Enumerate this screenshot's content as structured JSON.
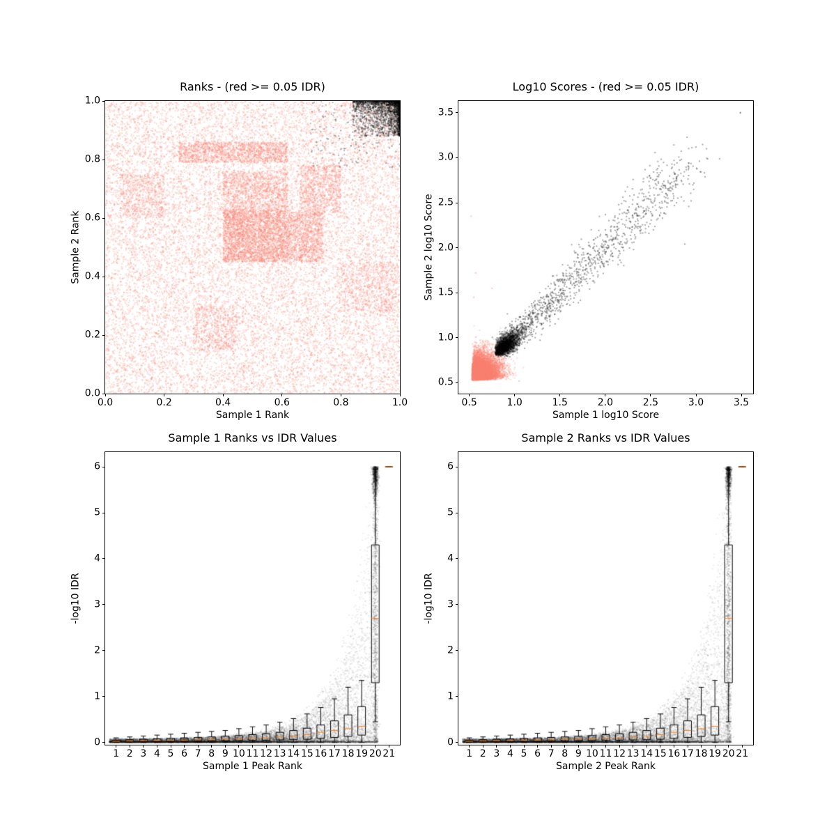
{
  "figure": {
    "background": "#ffffff",
    "text_color": "#000000",
    "reproducible_color": "#000000",
    "irreproducible_color": "#fa8072",
    "median_color": "#ff7f0e"
  },
  "chart_data": [
    {
      "type": "scatter",
      "title": "Ranks - (red >= 0.05 IDR)",
      "xlabel": "Sample 1 Rank",
      "ylabel": "Sample 2 Rank",
      "xlim": [
        0.0,
        1.0
      ],
      "ylim": [
        0.0,
        1.0
      ],
      "grid": false,
      "legend": "none",
      "xticks": {
        "values": [
          0.0,
          0.2,
          0.4,
          0.6,
          0.8,
          1.0
        ],
        "labels": [
          "0.0",
          "0.2",
          "0.4",
          "0.6",
          "0.8",
          "1.0"
        ]
      },
      "yticks": {
        "values": [
          0.0,
          0.2,
          0.4,
          0.6,
          0.8,
          1.0
        ],
        "labels": [
          "0.0",
          "0.2",
          "0.4",
          "0.6",
          "0.8",
          "1.0"
        ]
      },
      "series": [
        {
          "name": "irreproducible-peaks-idr>=0.05",
          "color": "#fa8072",
          "alpha": 0.3,
          "size": 2,
          "gen": "blocks",
          "blocks": [
            [
              0.0,
              1.0,
              0.0,
              1.0,
              15000
            ],
            [
              0.4,
              0.62,
              0.45,
              0.63,
              3200
            ],
            [
              0.62,
              0.74,
              0.45,
              0.62,
              1100
            ],
            [
              0.4,
              0.62,
              0.63,
              0.76,
              1100
            ],
            [
              0.25,
              0.62,
              0.79,
              0.86,
              1400
            ],
            [
              0.66,
              0.8,
              0.62,
              0.78,
              800
            ],
            [
              0.05,
              0.2,
              0.6,
              0.75,
              500
            ],
            [
              0.8,
              1.0,
              0.28,
              0.45,
              600
            ],
            [
              0.3,
              0.45,
              0.15,
              0.3,
              500
            ]
          ]
        },
        {
          "name": "reproducible-peaks-idr<0.05",
          "color": "#000000",
          "alpha": 0.3,
          "size": 2,
          "gen": "corner",
          "n": 2600,
          "cx": 1.0,
          "cy": 1.0,
          "dx": 0.16,
          "dy": 0.12,
          "pow": 2.6
        }
      ]
    },
    {
      "type": "scatter",
      "title": "Log10 Scores - (red >= 0.05 IDR)",
      "xlabel": "Sample 1 log10 Score",
      "ylabel": "Sample 2 log10 Score",
      "xlim": [
        0.38,
        3.63
      ],
      "ylim": [
        0.38,
        3.63
      ],
      "grid": false,
      "legend": "none",
      "xticks": {
        "values": [
          0.5,
          1.0,
          1.5,
          2.0,
          2.5,
          3.0,
          3.5
        ],
        "labels": [
          "0.5",
          "1.0",
          "1.5",
          "2.0",
          "2.5",
          "3.0",
          "3.5"
        ]
      },
      "yticks": {
        "values": [
          0.5,
          1.0,
          1.5,
          2.0,
          2.5,
          3.0,
          3.5
        ],
        "labels": [
          "0.5",
          "1.0",
          "1.5",
          "2.0",
          "2.5",
          "3.0",
          "3.5"
        ]
      },
      "series": [
        {
          "name": "irreproducible-low-scores",
          "color": "#fa8072",
          "alpha": 0.3,
          "size": 2,
          "gen": "blob",
          "n": 21000,
          "cx": 0.53,
          "cy": 0.53,
          "corr": 0.15,
          "sigmas": [
            [
              0.085,
              0.7
            ],
            [
              0.16,
              0.3
            ]
          ]
        },
        {
          "name": "reproducible-cluster",
          "color": "#000000",
          "alpha": 0.3,
          "size": 2,
          "gen": "blob",
          "n": 2300,
          "cx": 0.78,
          "cy": 0.8,
          "corr": 0.55,
          "sigmas": [
            [
              0.14,
              1.0
            ]
          ]
        },
        {
          "name": "reproducible-diagonal-band",
          "color": "#000000",
          "alpha": 0.35,
          "size": 2,
          "gen": "band",
          "n": 1400,
          "v0": 0.9,
          "v1": 2.95,
          "pow": 1.7,
          "noise": 0.06
        },
        {
          "name": "black-outliers",
          "color": "#000000",
          "alpha": 0.55,
          "size": 2,
          "gen": "points",
          "points": [
            [
              3.49,
              3.5
            ],
            [
              2.92,
              2.94
            ],
            [
              2.66,
              2.69
            ],
            [
              2.45,
              2.38
            ],
            [
              2.3,
              2.36
            ]
          ]
        },
        {
          "name": "salmon-outliers",
          "color": "#fa8072",
          "alpha": 0.5,
          "size": 2,
          "gen": "points",
          "points": [
            [
              0.57,
              1.72
            ],
            [
              0.55,
              1.45
            ],
            [
              0.75,
              1.55
            ],
            [
              1.05,
              0.52
            ],
            [
              0.52,
              2.35
            ]
          ]
        }
      ]
    },
    {
      "type": "scatter+box",
      "title": "Sample 1 Ranks vs IDR Values",
      "xlabel": "Sample 1 Peak Rank",
      "ylabel": "-log10 IDR",
      "xlim": [
        0.2,
        21.8
      ],
      "ylim": [
        -0.05,
        6.32
      ],
      "grid": false,
      "legend": "none",
      "xticks": {
        "values": [
          1,
          2,
          3,
          4,
          5,
          6,
          7,
          8,
          9,
          10,
          11,
          12,
          13,
          14,
          15,
          16,
          17,
          18,
          19,
          20,
          21
        ],
        "labels": [
          "1",
          "2",
          "3",
          "4",
          "5",
          "6",
          "7",
          "8",
          "9",
          "10",
          "11",
          "12",
          "13",
          "14",
          "15",
          "16",
          "17",
          "18",
          "19",
          "20",
          "21"
        ]
      },
      "yticks": {
        "values": [
          0,
          1,
          2,
          3,
          4,
          5,
          6
        ],
        "labels": [
          "0",
          "1",
          "2",
          "3",
          "4",
          "5",
          "6"
        ]
      },
      "series": [
        {
          "name": "idr-vs-rank-cloud",
          "color": "#000000",
          "alpha": 0.08,
          "size": 2,
          "gen": "idr_cloud",
          "n": 15000,
          "x0": 0.5,
          "x1": 20.2,
          "env_base": 0.07,
          "env_ratio": 86,
          "env_pow": 2.5,
          "skew": 3.0
        },
        {
          "name": "top-rank-streak",
          "color": "#000000",
          "alpha": 0.12,
          "size": 2,
          "gen": "streak",
          "n": 1500,
          "x": 20.0,
          "jitter": 0.1,
          "ymax": 6.0,
          "top_frac": 0.45,
          "top_sigma": 0.3
        }
      ],
      "boxplot": {
        "median_color": "#ff7f0e",
        "width": 0.56,
        "positions": [
          1,
          2,
          3,
          4,
          5,
          6,
          7,
          8,
          9,
          10,
          11,
          12,
          13,
          14,
          15,
          16,
          17,
          18,
          19,
          20,
          21
        ],
        "stats": [
          [
            0.0,
            0.01,
            0.025,
            0.05,
            0.1
          ],
          [
            0.0,
            0.012,
            0.03,
            0.06,
            0.12
          ],
          [
            0.0,
            0.015,
            0.035,
            0.07,
            0.14
          ],
          [
            0.0,
            0.018,
            0.04,
            0.08,
            0.16
          ],
          [
            0.0,
            0.02,
            0.045,
            0.09,
            0.18
          ],
          [
            0.0,
            0.025,
            0.05,
            0.1,
            0.2
          ],
          [
            0.0,
            0.028,
            0.058,
            0.11,
            0.22
          ],
          [
            0.0,
            0.03,
            0.065,
            0.12,
            0.24
          ],
          [
            0.0,
            0.035,
            0.072,
            0.135,
            0.26
          ],
          [
            0.0,
            0.04,
            0.08,
            0.15,
            0.3
          ],
          [
            0.0,
            0.045,
            0.09,
            0.17,
            0.34
          ],
          [
            0.0,
            0.05,
            0.1,
            0.19,
            0.38
          ],
          [
            0.0,
            0.055,
            0.12,
            0.22,
            0.44
          ],
          [
            0.0,
            0.06,
            0.14,
            0.26,
            0.52
          ],
          [
            0.0,
            0.07,
            0.17,
            0.31,
            0.62
          ],
          [
            0.0,
            0.09,
            0.22,
            0.38,
            0.76
          ],
          [
            0.0,
            0.11,
            0.26,
            0.47,
            0.95
          ],
          [
            0.0,
            0.13,
            0.3,
            0.6,
            1.2
          ],
          [
            0.0,
            0.16,
            0.35,
            0.78,
            1.35
          ],
          [
            0.45,
            1.3,
            2.7,
            4.3,
            5.95
          ],
          [
            6.0,
            6.0,
            6.0,
            6.0,
            6.0
          ]
        ]
      }
    },
    {
      "type": "scatter+box",
      "title": "Sample 2 Ranks vs IDR Values",
      "xlabel": "Sample 2 Peak Rank",
      "ylabel": "-log10 IDR",
      "xlim": [
        0.2,
        21.8
      ],
      "ylim": [
        -0.05,
        6.32
      ],
      "grid": false,
      "legend": "none",
      "xticks": {
        "values": [
          1,
          2,
          3,
          4,
          5,
          6,
          7,
          8,
          9,
          10,
          11,
          12,
          13,
          14,
          15,
          16,
          17,
          18,
          19,
          20,
          21
        ],
        "labels": [
          "1",
          "2",
          "3",
          "4",
          "5",
          "6",
          "7",
          "8",
          "9",
          "10",
          "11",
          "12",
          "13",
          "14",
          "15",
          "16",
          "17",
          "18",
          "19",
          "20",
          "21"
        ]
      },
      "yticks": {
        "values": [
          0,
          1,
          2,
          3,
          4,
          5,
          6
        ],
        "labels": [
          "0",
          "1",
          "2",
          "3",
          "4",
          "5",
          "6"
        ]
      },
      "series": [
        {
          "name": "idr-vs-rank-cloud",
          "color": "#000000",
          "alpha": 0.08,
          "size": 2,
          "gen": "idr_cloud",
          "n": 15000,
          "x0": 0.5,
          "x1": 20.2,
          "env_base": 0.07,
          "env_ratio": 86,
          "env_pow": 2.5,
          "skew": 3.0
        },
        {
          "name": "top-rank-streak",
          "color": "#000000",
          "alpha": 0.12,
          "size": 2,
          "gen": "streak",
          "n": 1500,
          "x": 20.0,
          "jitter": 0.1,
          "ymax": 6.0,
          "top_frac": 0.45,
          "top_sigma": 0.3
        }
      ],
      "boxplot": {
        "median_color": "#ff7f0e",
        "width": 0.56,
        "positions": [
          1,
          2,
          3,
          4,
          5,
          6,
          7,
          8,
          9,
          10,
          11,
          12,
          13,
          14,
          15,
          16,
          17,
          18,
          19,
          20,
          21
        ],
        "stats": [
          [
            0.0,
            0.01,
            0.025,
            0.05,
            0.1
          ],
          [
            0.0,
            0.012,
            0.03,
            0.06,
            0.12
          ],
          [
            0.0,
            0.015,
            0.035,
            0.07,
            0.14
          ],
          [
            0.0,
            0.018,
            0.04,
            0.08,
            0.16
          ],
          [
            0.0,
            0.02,
            0.045,
            0.09,
            0.18
          ],
          [
            0.0,
            0.025,
            0.05,
            0.1,
            0.2
          ],
          [
            0.0,
            0.028,
            0.058,
            0.11,
            0.22
          ],
          [
            0.0,
            0.03,
            0.065,
            0.12,
            0.24
          ],
          [
            0.0,
            0.035,
            0.072,
            0.135,
            0.26
          ],
          [
            0.0,
            0.04,
            0.08,
            0.15,
            0.3
          ],
          [
            0.0,
            0.045,
            0.09,
            0.17,
            0.34
          ],
          [
            0.0,
            0.05,
            0.1,
            0.19,
            0.38
          ],
          [
            0.0,
            0.055,
            0.12,
            0.22,
            0.44
          ],
          [
            0.0,
            0.06,
            0.14,
            0.26,
            0.52
          ],
          [
            0.0,
            0.07,
            0.17,
            0.31,
            0.62
          ],
          [
            0.0,
            0.09,
            0.22,
            0.38,
            0.76
          ],
          [
            0.0,
            0.11,
            0.26,
            0.47,
            0.95
          ],
          [
            0.0,
            0.13,
            0.3,
            0.6,
            1.2
          ],
          [
            0.0,
            0.16,
            0.35,
            0.78,
            1.35
          ],
          [
            0.45,
            1.3,
            2.7,
            4.3,
            5.95
          ],
          [
            6.0,
            6.0,
            6.0,
            6.0,
            6.0
          ]
        ]
      }
    }
  ]
}
